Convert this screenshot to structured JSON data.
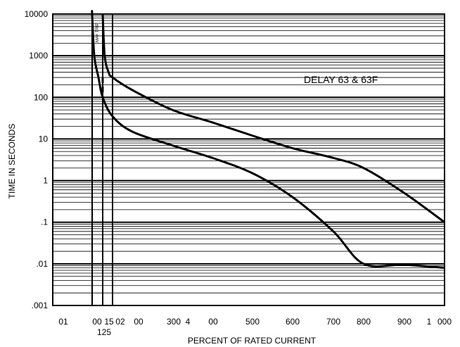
{
  "chart_data": {
    "type": "line",
    "title": "",
    "xlabel": "PERCENT OF RATED CURRENT",
    "ylabel": "TIME IN SECONDS",
    "yscale": "log",
    "ylim": [
      0.001,
      10000
    ],
    "grid": true,
    "legend": "none",
    "x_tick_labels": [
      "01",
      "00",
      "15",
      "02",
      "00",
      "300",
      "4",
      "00",
      "500",
      "600",
      "700",
      "800",
      "900",
      "1",
      "000"
    ],
    "x_tick_extra": [
      "125"
    ],
    "y_tick_labels": [
      "10000",
      "1000",
      "100",
      "10",
      "1",
      ".1",
      ".01",
      ".001"
    ],
    "annotations": {
      "delay_label": "DELAY 63 & 63F",
      "may_trip_label": "MAY TRIP"
    },
    "series": [
      {
        "values_x": [
          100,
          100,
          105,
          115,
          125,
          150,
          200,
          300,
          400,
          500,
          600,
          700,
          800,
          900,
          1000
        ],
        "values_y": [
          10000,
          10000,
          1000,
          300,
          100,
          35,
          15,
          7,
          3.5,
          1.5,
          0.4,
          0.06,
          0.01,
          0.0095,
          0.008
        ]
      },
      {
        "values_x": [
          125,
          130,
          140,
          150,
          200,
          300,
          400,
          500,
          600,
          700,
          800,
          900,
          1000
        ],
        "values_y": [
          10000,
          1000,
          400,
          300,
          150,
          50,
          25,
          12,
          6,
          3.5,
          2,
          0.5,
          0.1
        ]
      },
      {
        "style": "dashed",
        "values_x": [
          125,
          125
        ],
        "values_y": [
          300,
          100
        ]
      }
    ]
  }
}
